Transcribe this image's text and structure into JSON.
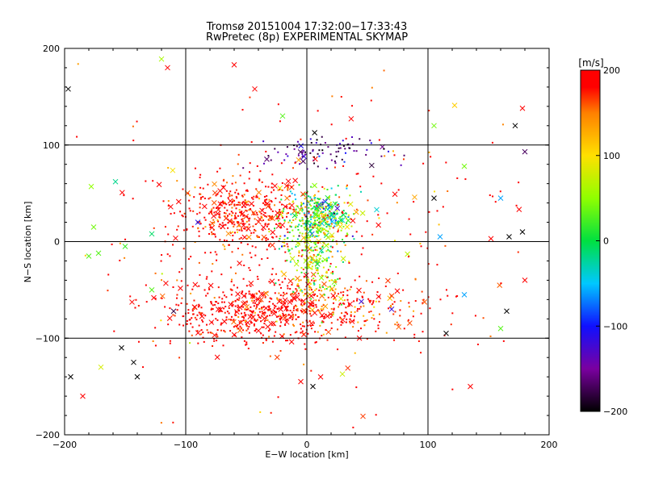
{
  "chart_data": {
    "type": "scatter",
    "title": "Tromsø 20151004 17:32:00−17:33:43",
    "subtitle": "RwPretec (8p) EXPERIMENTAL SKYMAP",
    "xlabel": "E−W location [km]",
    "ylabel": "N−S location [km]",
    "xlim": [
      -200,
      200
    ],
    "ylim": [
      -200,
      200
    ],
    "x_ticks": [
      -200,
      -100,
      0,
      100,
      200
    ],
    "y_ticks": [
      -200,
      -100,
      0,
      100,
      200
    ],
    "x_tick_labels": [
      "−200",
      "−100",
      "0",
      "100",
      "200"
    ],
    "y_tick_labels": [
      "−200",
      "−100",
      "0",
      "100",
      "200"
    ],
    "grid": true,
    "colorbar": {
      "label": "[m/s]",
      "range": [
        -200,
        200
      ],
      "ticks": [
        200,
        100,
        0,
        -100,
        -200
      ],
      "tick_labels": [
        "200",
        "100",
        "0",
        "−100",
        "−200"
      ]
    },
    "markers": [
      "cross",
      "dot"
    ],
    "clusters_note_values": [
      {
        "x": -60,
        "y": 30,
        "v": 200
      },
      {
        "x": 10,
        "y": 25,
        "v": 40
      },
      {
        "x": -40,
        "y": -70,
        "v": 200
      },
      {
        "x": 5,
        "y": -20,
        "v": 80
      },
      {
        "x": 10,
        "y": 95,
        "v": -150
      }
    ],
    "sample_points": [
      {
        "x": -197,
        "y": 158,
        "v": -200,
        "m": "x"
      },
      {
        "x": -115,
        "y": 180,
        "v": 200,
        "m": "x"
      },
      {
        "x": -60,
        "y": 183,
        "v": 200,
        "m": "x"
      },
      {
        "x": -120,
        "y": 189,
        "v": 60,
        "m": "x"
      },
      {
        "x": -43,
        "y": 158,
        "v": 200,
        "m": "x"
      },
      {
        "x": -20,
        "y": 130,
        "v": 30,
        "m": "x"
      },
      {
        "x": 122,
        "y": 141,
        "v": 110,
        "m": "x"
      },
      {
        "x": 105,
        "y": 120,
        "v": 40,
        "m": "x"
      },
      {
        "x": 172,
        "y": 120,
        "v": -200,
        "m": "x"
      },
      {
        "x": 178,
        "y": 138,
        "v": 200,
        "m": "x"
      },
      {
        "x": 180,
        "y": 93,
        "v": -170,
        "m": "x"
      },
      {
        "x": 160,
        "y": 45,
        "v": -60,
        "m": "x"
      },
      {
        "x": 178,
        "y": 10,
        "v": -200,
        "m": "x"
      },
      {
        "x": 167,
        "y": 5,
        "v": -200,
        "m": "x"
      },
      {
        "x": 105,
        "y": 45,
        "v": -200,
        "m": "x"
      },
      {
        "x": 130,
        "y": 78,
        "v": 40,
        "m": "x"
      },
      {
        "x": 110,
        "y": 5,
        "v": -60,
        "m": "x"
      },
      {
        "x": 152,
        "y": 3,
        "v": 200,
        "m": "x"
      },
      {
        "x": 165,
        "y": -72,
        "v": -200,
        "m": "x"
      },
      {
        "x": 160,
        "y": -90,
        "v": 30,
        "m": "x"
      },
      {
        "x": 130,
        "y": -55,
        "v": -60,
        "m": "x"
      },
      {
        "x": 115,
        "y": -95,
        "v": -200,
        "m": "x"
      },
      {
        "x": 180,
        "y": -40,
        "v": 200,
        "m": "x"
      },
      {
        "x": -178,
        "y": 57,
        "v": 50,
        "m": "x"
      },
      {
        "x": -176,
        "y": 15,
        "v": 40,
        "m": "x"
      },
      {
        "x": -158,
        "y": 62,
        "v": -20,
        "m": "x"
      },
      {
        "x": -128,
        "y": 8,
        "v": -10,
        "m": "x"
      },
      {
        "x": -180,
        "y": -15,
        "v": 30,
        "m": "x"
      },
      {
        "x": -172,
        "y": -12,
        "v": 30,
        "m": "x"
      },
      {
        "x": -128,
        "y": -50,
        "v": 30,
        "m": "x"
      },
      {
        "x": -110,
        "y": -72,
        "v": -180,
        "m": "x"
      },
      {
        "x": -153,
        "y": -110,
        "v": -200,
        "m": "x"
      },
      {
        "x": -143,
        "y": -125,
        "v": -200,
        "m": "x"
      },
      {
        "x": -170,
        "y": -130,
        "v": 80,
        "m": "x"
      },
      {
        "x": -185,
        "y": -160,
        "v": 200,
        "m": "x"
      },
      {
        "x": -195,
        "y": -140,
        "v": -200,
        "m": "x"
      },
      {
        "x": -140,
        "y": -140,
        "v": -200,
        "m": "x"
      },
      {
        "x": -90,
        "y": 20,
        "v": -100,
        "m": "x"
      },
      {
        "x": -150,
        "y": -5,
        "v": 20,
        "m": "x"
      },
      {
        "x": 45,
        "y": -62,
        "v": -120,
        "m": "x"
      },
      {
        "x": 70,
        "y": -70,
        "v": -120,
        "m": "x"
      },
      {
        "x": 5,
        "y": -150,
        "v": -200,
        "m": "x"
      },
      {
        "x": -5,
        "y": -145,
        "v": 200,
        "m": "x"
      },
      {
        "x": 135,
        "y": -150,
        "v": 200,
        "m": "x"
      },
      {
        "x": 0,
        "y": 0,
        "v": 60,
        "m": "x"
      }
    ]
  }
}
